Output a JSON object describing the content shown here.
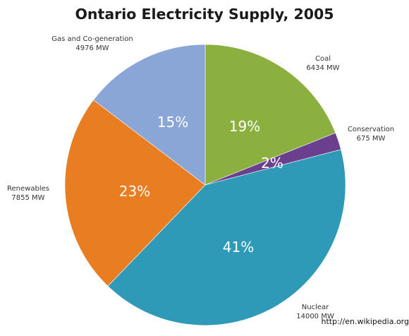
{
  "chart_data": {
    "type": "pie",
    "title": "Ontario Electricity Supply, 2005",
    "slices": [
      {
        "label": "Coal",
        "value": 6434,
        "unit": "MW",
        "value_text": "6434 MW",
        "percent_text": "19%",
        "color": "#8CB03F"
      },
      {
        "label": "Conservation",
        "value": 675,
        "unit": "MW",
        "value_text": "675 MW",
        "percent_text": "2%",
        "color": "#6A3F8E"
      },
      {
        "label": "Nuclear",
        "value": 14000,
        "unit": "MW",
        "value_text": "14000 MW",
        "percent_text": "41%",
        "color": "#2E9AB7"
      },
      {
        "label": "Renewables",
        "value": 7855,
        "unit": "MW",
        "value_text": "7855 MW",
        "percent_text": "23%",
        "color": "#E97D22"
      },
      {
        "label": "Gas and Co-generation",
        "value": 4976,
        "unit": "MW",
        "value_text": "4976 MW",
        "percent_text": "15%",
        "color": "#8AA6D6"
      }
    ],
    "legend": "none"
  },
  "source": "http://en.wikipedia.org"
}
